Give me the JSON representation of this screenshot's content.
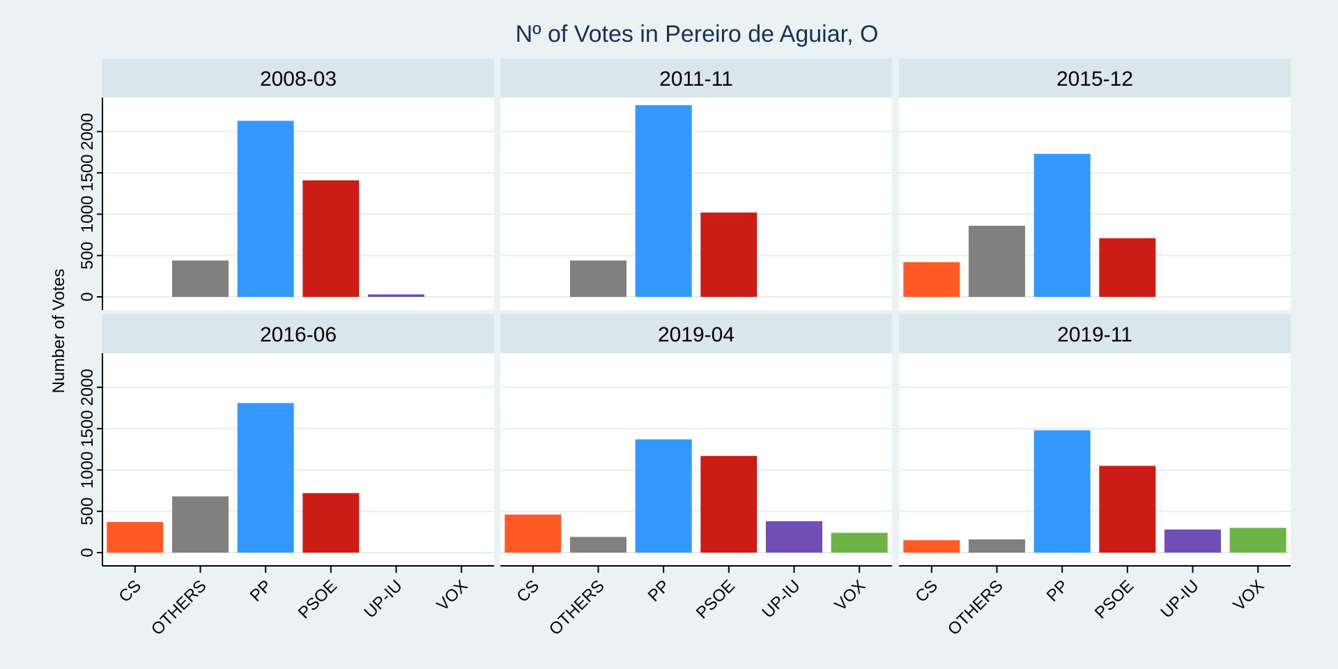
{
  "chart_data": {
    "type": "bar",
    "title": "Nº of Votes in Pereiro de Aguiar, O",
    "ylabel": "Number of Votes",
    "xlabel": "",
    "ylim": [
      0,
      2400
    ],
    "yticks": [
      "0",
      "500",
      "1000",
      "1500",
      "2000"
    ],
    "categories": [
      "CS",
      "OTHERS",
      "PP",
      "PSOE",
      "UP-IU",
      "VOX"
    ],
    "colors": {
      "CS": "#ff5a26",
      "OTHERS": "#808080",
      "PP": "#3399ff",
      "PSOE": "#cb1d15",
      "UP-IU": "#6f4eb6",
      "VOX": "#6db345"
    },
    "panels": [
      {
        "label": "2008-03",
        "values": [
          null,
          440,
          2130,
          1410,
          30,
          null
        ]
      },
      {
        "label": "2011-11",
        "values": [
          null,
          440,
          2320,
          1020,
          null,
          null
        ]
      },
      {
        "label": "2015-12",
        "values": [
          420,
          860,
          1730,
          710,
          null,
          null
        ]
      },
      {
        "label": "2016-06",
        "values": [
          370,
          680,
          1810,
          720,
          null,
          null
        ]
      },
      {
        "label": "2019-04",
        "values": [
          460,
          190,
          1370,
          1170,
          380,
          240
        ]
      },
      {
        "label": "2019-11",
        "values": [
          150,
          160,
          1480,
          1050,
          280,
          300
        ]
      }
    ]
  }
}
